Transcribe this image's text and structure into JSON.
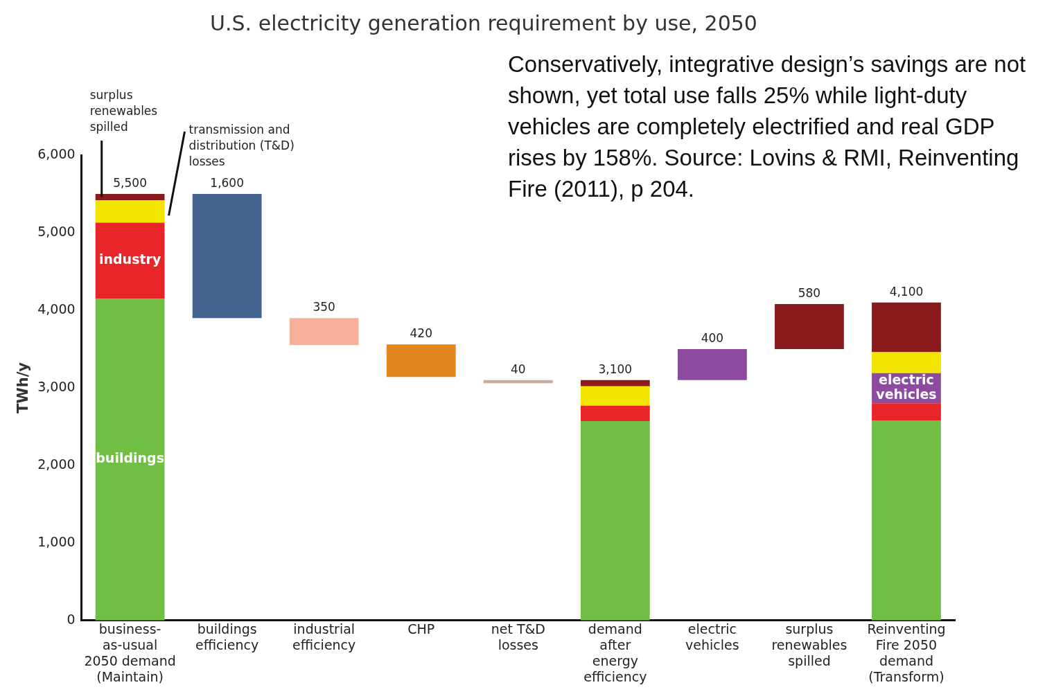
{
  "chart_data": {
    "type": "bar",
    "title": "U.S. electricity generation requirement by use, 2050",
    "ylabel": "TWh/y",
    "categories": [
      "business-as-usual 2050 demand (Maintain)",
      "buildings efficiency",
      "industrial efficiency",
      "CHP",
      "net T&D losses",
      "demand after energy efficiency",
      "electric vehicles",
      "surplus renewables spilled",
      "Reinventing Fire 2050 demand (Transform)"
    ],
    "stacked": true,
    "series": [
      {
        "name": "buildings",
        "color": "#70bf44",
        "values": [
          4150,
          null,
          null,
          null,
          null,
          2570,
          null,
          null,
          2580
        ]
      },
      {
        "name": "industry",
        "color": "#e8262a",
        "values": [
          980,
          null,
          null,
          null,
          null,
          200,
          null,
          null,
          220
        ]
      },
      {
        "name": "electric vehicles",
        "color": "#8d4b9f",
        "values": [
          null,
          null,
          null,
          null,
          null,
          null,
          null,
          null,
          390
        ]
      },
      {
        "name": "transmission and distribution (T&D) losses",
        "color": "#f4e500",
        "values": [
          290,
          null,
          null,
          null,
          null,
          250,
          null,
          null,
          270
        ]
      },
      {
        "name": "surplus renewables spilled",
        "color": "#8b1a1c",
        "values": [
          80,
          null,
          null,
          null,
          null,
          80,
          null,
          null,
          640
        ]
      },
      {
        "type": "bar",
        "colors": [
          "#ffffff",
          "#43628f",
          "#f9b09a",
          "#e3861f",
          "#c9ad9c",
          "#ffffff",
          "#8d4b9f",
          "#8b1a1c",
          "#ffffff"
        ],
        "base": [
          null,
          3900,
          3550,
          3140,
          3060,
          null,
          3100,
          3500,
          null
        ],
        "values": [
          null,
          1600,
          350,
          420,
          40,
          null,
          400,
          580,
          null
        ],
        "value_labels": [
          null,
          "1,600",
          "350",
          "420",
          "40",
          null,
          "400",
          "580",
          null
        ]
      }
    ],
    "totals": [
      "5,500",
      null,
      null,
      null,
      null,
      "3,100",
      null,
      null,
      "4,100"
    ],
    "ylim": [
      0,
      6000
    ],
    "yticks": [
      {
        "value": 0,
        "label": "0"
      },
      {
        "value": 1000,
        "label": "1,000"
      },
      {
        "value": 2000,
        "label": "2,000"
      },
      {
        "value": 3000,
        "label": "3,000"
      },
      {
        "value": 4000,
        "label": "4,000"
      },
      {
        "value": 5000,
        "label": "5,000"
      },
      {
        "value": 6000,
        "label": "6,000"
      }
    ],
    "grid": false,
    "legend": false,
    "annotations": [
      "Conservatively, integrative design’s savings are not shown, yet total use falls 25% while light-duty vehicles are completely electrified and real GDP rises by 158%. Source: Lovins & RMI, Reinventing Fire (2011), p 204."
    ]
  }
}
